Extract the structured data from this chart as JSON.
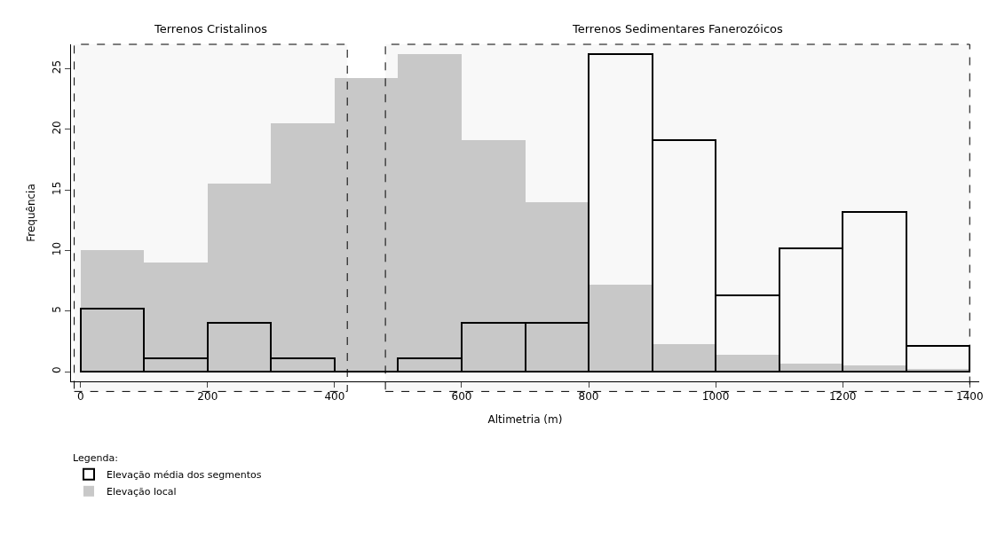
{
  "chart_data": {
    "type": "histogram",
    "xlabel": "Altimetria (m)",
    "ylabel": "Frequência",
    "legend_title": "Legenda:",
    "bins": [
      0,
      100,
      200,
      300,
      400,
      500,
      600,
      700,
      800,
      900,
      1000,
      1100,
      1200,
      1300,
      1400
    ],
    "series": [
      {
        "name": "Elevação local",
        "color": "#c8c8c8",
        "values": [
          10,
          9,
          15.5,
          20.5,
          24.2,
          26.2,
          19.1,
          14,
          7.2,
          2.3,
          1.4,
          0.7,
          0.5,
          0.2
        ]
      },
      {
        "name": "Elevação média dos segmentos",
        "color": "#000000",
        "values": [
          5.2,
          1.1,
          4,
          1.1,
          0,
          1.1,
          4,
          4,
          26.2,
          19.1,
          6.3,
          10.2,
          13.2,
          2.1
        ]
      }
    ],
    "bands": [
      {
        "axis": "x",
        "from": -10,
        "to": 420,
        "label": "Terrenos Cristalinos",
        "color": "#000000"
      },
      {
        "axis": "x",
        "from": 480,
        "to": 1400,
        "label": "Terrenos Sedimentares Fanerozóicos",
        "color": "#000000"
      }
    ],
    "xlim": [
      -15,
      1415
    ],
    "ylim": [
      -0.8,
      27
    ],
    "xticks": [
      0,
      200,
      400,
      600,
      800,
      1000,
      1200,
      1400
    ],
    "yticks": [
      0,
      5,
      10,
      15,
      20,
      25
    ],
    "legend": "bottom left"
  }
}
